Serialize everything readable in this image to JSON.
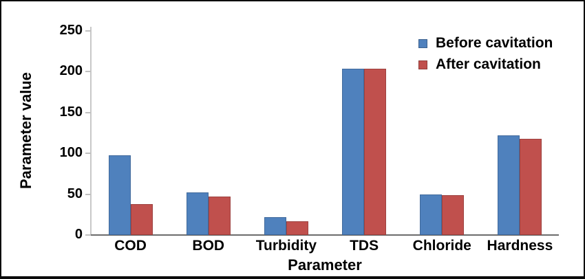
{
  "chart_data": {
    "type": "bar",
    "title": "",
    "xlabel": "Parameter",
    "ylabel": "Parameter value",
    "categories": [
      "COD",
      "BOD",
      "Turbidity",
      "TDS",
      "Chloride",
      "Hardness"
    ],
    "series": [
      {
        "name": "Before cavitation",
        "color": "#4F81BD",
        "values": [
          98,
          52,
          22,
          204,
          50,
          122
        ]
      },
      {
        "name": "After cavitation",
        "color": "#C0504D",
        "values": [
          38,
          47,
          17,
          204,
          49,
          118
        ]
      }
    ],
    "ylim": [
      0,
      250
    ],
    "yticks": [
      0,
      50,
      100,
      150,
      200,
      250
    ],
    "grid": false,
    "legend_position": "upper right"
  },
  "colors": {
    "before_series": "#4F81BD",
    "after_series": "#C0504D",
    "text": "#000000"
  }
}
